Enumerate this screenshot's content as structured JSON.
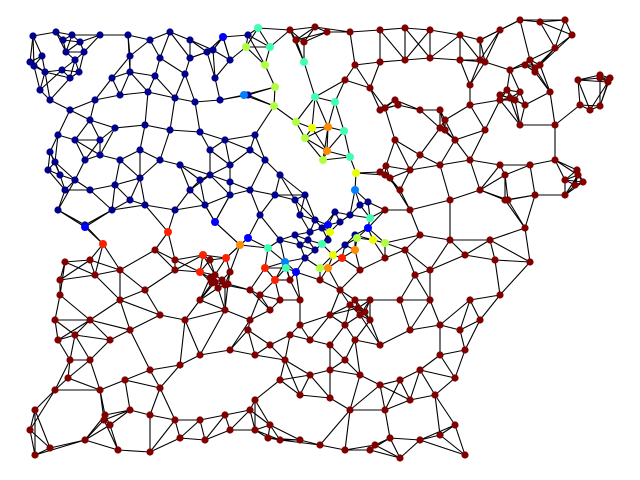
{
  "figure": {
    "background": "#ffffff",
    "edge_color": "#000000",
    "colormap": "jet"
  },
  "legend": {
    "node_colors": {
      "deep_blue": "#00008b",
      "blue": "#0000ff",
      "azure": "#0080ff",
      "cyan": "#00c8ff",
      "teal_green": "#40ffb0",
      "lime": "#b0ff40",
      "yellow": "#e8ff00",
      "orange": "#ff8c00",
      "red": "#ff2000",
      "dark_red": "#800000"
    }
  }
}
